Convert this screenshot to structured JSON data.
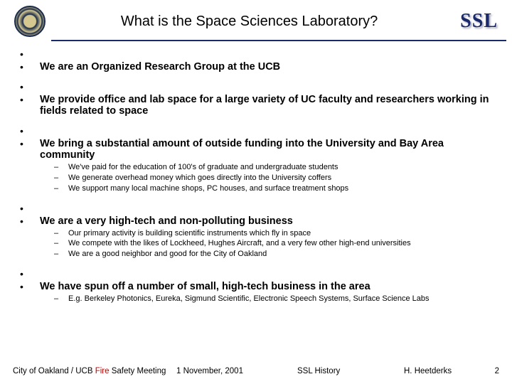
{
  "header": {
    "title": "What is the Space Sciences Laboratory?",
    "logo_text": "SSL"
  },
  "bullets": [
    {
      "text": "We are an Organized Research Group at the UCB",
      "subs": []
    },
    {
      "text": "We provide office and lab space for a large variety of UC faculty and researchers working in fields related to space",
      "subs": []
    },
    {
      "text": "We bring a substantial amount of outside funding into the University and Bay Area community",
      "subs": [
        "We've paid for the education of 100's of graduate and undergraduate students",
        "We generate overhead money which goes directly into the University coffers",
        "We support many local machine shops, PC houses, and surface treatment shops"
      ]
    },
    {
      "text": "We are a very high-tech and non-polluting business",
      "subs": [
        "Our primary activity is building scientific instruments which fly in space",
        "We compete with the likes of Lockheed, Hughes Aircraft, and a very few other high-end universities",
        "We are a good neighbor and good for the City of Oakland"
      ]
    },
    {
      "text": "We have spun off a number of small, high-tech business in the area",
      "subs": [
        "E.g. Berkeley Photonics, Eureka, Sigmund Scientific, Electronic Speech Systems, Surface Science Labs"
      ]
    }
  ],
  "footer": {
    "city_prefix": "City of Oakland / UCB  ",
    "fire": "Fire",
    "safety_suffix": " Safety Meeting",
    "date": "1 November,  2001",
    "section": "SSL History",
    "author": "H. Heetderks",
    "page": "2"
  }
}
